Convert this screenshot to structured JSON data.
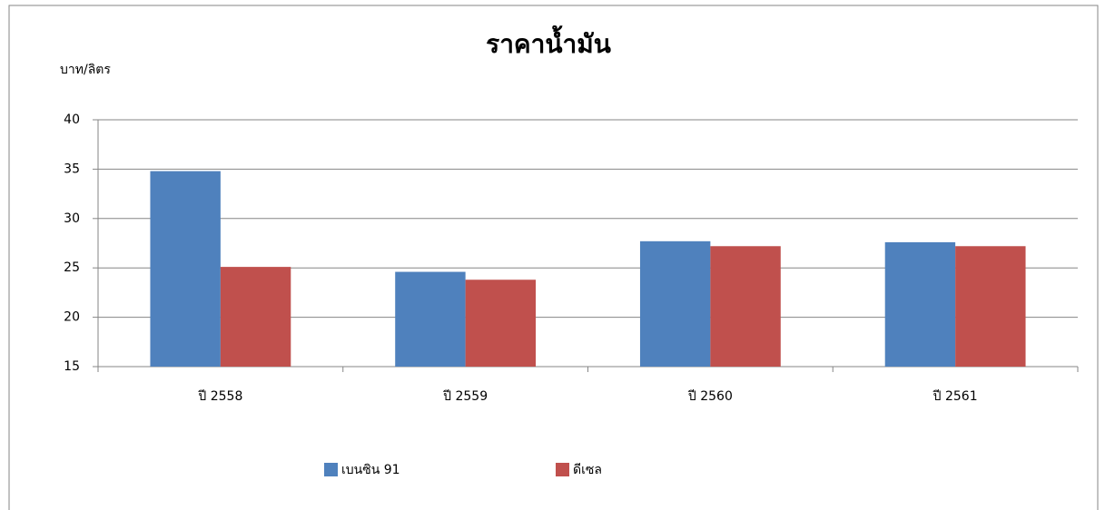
{
  "chart_data": {
    "type": "bar",
    "title": "ราคาน้ำมัน",
    "y_label": "บาท/ลิตร",
    "categories": [
      "ปี 2558",
      "ปี 2559",
      "ปี 2560",
      "ปี 2561"
    ],
    "series": [
      {
        "name": "เบนซิน 91",
        "color": "#4f81bd",
        "values": [
          34.8,
          24.6,
          27.7,
          27.6
        ]
      },
      {
        "name": "ดีเซล",
        "color": "#c0504d",
        "values": [
          25.1,
          23.8,
          27.2,
          27.2
        ]
      }
    ],
    "ylim": [
      15,
      40
    ],
    "yticks": [
      15,
      20,
      25,
      30,
      35,
      40
    ],
    "grid": true,
    "legend": "bottom"
  }
}
